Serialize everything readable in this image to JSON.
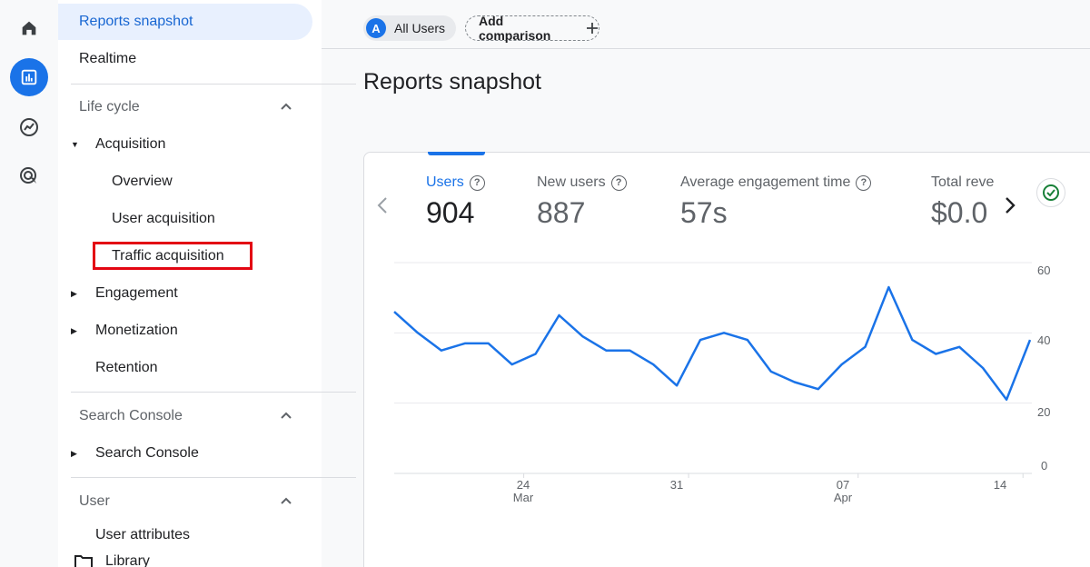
{
  "nav": {
    "reports_snapshot": "Reports snapshot",
    "realtime": "Realtime",
    "lifecycle": "Life cycle",
    "acquisition": "Acquisition",
    "overview": "Overview",
    "user_acquisition": "User acquisition",
    "traffic_acquisition": "Traffic acquisition",
    "engagement": "Engagement",
    "monetization": "Monetization",
    "retention": "Retention",
    "search_console_section": "Search Console",
    "search_console_item": "Search Console",
    "user_section": "User",
    "user_attributes": "User attributes",
    "library": "Library"
  },
  "topbar": {
    "avatar_letter": "A",
    "all_users": "All Users",
    "add_comparison": "Add comparison"
  },
  "page_title": "Reports snapshot",
  "metrics": [
    {
      "label": "Users",
      "value": "904"
    },
    {
      "label": "New users",
      "value": "887"
    },
    {
      "label": "Average engagement time",
      "value": "57s"
    },
    {
      "label": "Total reve",
      "value": "$0.0"
    }
  ],
  "colors": {
    "accent": "#1a73e8",
    "highlight": "#e30613",
    "line": "#1a73e8"
  },
  "chart_data": {
    "type": "line",
    "series": [
      {
        "name": "Users",
        "values": [
          46,
          40,
          35,
          37,
          37,
          31,
          34,
          45,
          39,
          35,
          35,
          31,
          25,
          38,
          40,
          38,
          29,
          26,
          24,
          31,
          36,
          53,
          38,
          34,
          36,
          30,
          21,
          38
        ]
      }
    ],
    "ylim": [
      0,
      60
    ],
    "yticks": [
      "60",
      "40",
      "20",
      "0"
    ],
    "xticks": [
      {
        "day": "24",
        "month": "Mar",
        "index": 5.5
      },
      {
        "day": "31",
        "month": "",
        "index": 12.5
      },
      {
        "day": "07",
        "month": "Apr",
        "index": 19.7
      },
      {
        "day": "14",
        "month": "",
        "index": 26.7
      }
    ],
    "title": "",
    "xlabel": "",
    "ylabel": ""
  }
}
